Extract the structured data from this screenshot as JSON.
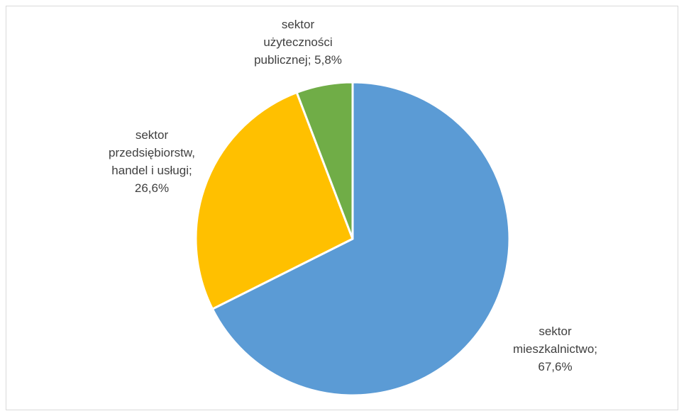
{
  "chart_data": {
    "type": "pie",
    "start_angle_deg": 0,
    "direction": "clockwise",
    "slices": [
      {
        "label_lines": [
          "sektor",
          "mieszkalnictwo;",
          "67,6%"
        ],
        "category": "sektor mieszkalnictwo",
        "value": 67.6,
        "color": "#5b9bd5"
      },
      {
        "label_lines": [
          "sektor",
          "przedsiębiorstw,",
          "handel i usługi;",
          "26,6%"
        ],
        "category": "sektor przedsiębiorstw, handel i usługi",
        "value": 26.6,
        "color": "#ffc000"
      },
      {
        "label_lines": [
          "sektor",
          "użyteczności",
          "publicznej; 5,8%"
        ],
        "category": "sektor użyteczności publicznej",
        "value": 5.8,
        "color": "#70ad47"
      }
    ]
  }
}
